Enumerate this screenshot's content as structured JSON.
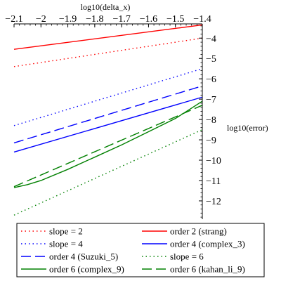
{
  "chart_data": {
    "type": "line",
    "xlabel": "log10(delta_x)",
    "ylabel": "log10(error)",
    "xlim": [
      -2.1,
      -1.4
    ],
    "ylim": [
      -12.9,
      -3.3
    ],
    "x_ticks": [
      -2.1,
      -2,
      -1.9,
      -1.8,
      -1.7,
      -1.6,
      -1.5,
      -1.4
    ],
    "x_tick_labels": [
      "−2.1",
      "−2",
      "−1.9",
      "−1.8",
      "−1.7",
      "−1.6",
      "−1.5",
      "−1.4"
    ],
    "y_ticks": [
      -4,
      -5,
      -6,
      -7,
      -8,
      -9,
      -10,
      -11,
      -12
    ],
    "y_tick_labels": [
      "−4",
      "−5",
      "−6",
      "−7",
      "−8",
      "−9",
      "−10",
      "−11",
      "−12"
    ],
    "x_axis_position": "top",
    "y_axis_position": "right",
    "grid": false,
    "legend_position": "bottom",
    "series": [
      {
        "name": "slope = 2",
        "color": "#ff0000",
        "dash": "dotted",
        "x": [
          -2.1,
          -1.4
        ],
        "y": [
          -5.4,
          -4.0
        ]
      },
      {
        "name": "order 2 (strang)",
        "color": "#ff0000",
        "dash": "solid",
        "x": [
          -2.1,
          -1.4
        ],
        "y": [
          -4.55,
          -3.35
        ]
      },
      {
        "name": "slope = 4",
        "color": "#0000ff",
        "dash": "dotted",
        "x": [
          -2.1,
          -1.4
        ],
        "y": [
          -8.3,
          -5.5
        ]
      },
      {
        "name": "order 4 (complex_3)",
        "color": "#0000ff",
        "dash": "solid",
        "x": [
          -2.1,
          -1.4
        ],
        "y": [
          -9.6,
          -6.9
        ]
      },
      {
        "name": "order 4 (Suzuki_5)",
        "color": "#0000ff",
        "dash": "dashed",
        "x": [
          -2.1,
          -1.4
        ],
        "y": [
          -9.15,
          -6.35
        ]
      },
      {
        "name": "slope = 6",
        "color": "#008000",
        "dash": "dotted",
        "x": [
          -2.1,
          -1.4
        ],
        "y": [
          -12.7,
          -8.5
        ]
      },
      {
        "name": "order 6 (complex_9)",
        "color": "#008000",
        "dash": "solid",
        "x": [
          -2.1,
          -2.05,
          -2.0,
          -1.9,
          -1.8,
          -1.7,
          -1.6,
          -1.5,
          -1.4
        ],
        "y": [
          -11.35,
          -11.2,
          -11.0,
          -10.45,
          -9.85,
          -9.25,
          -8.6,
          -7.95,
          -7.1
        ]
      },
      {
        "name": "order 6 (kahan_li_9)",
        "color": "#008000",
        "dash": "dashed",
        "x": [
          -2.1,
          -1.4
        ],
        "y": [
          -11.3,
          -7.3
        ]
      }
    ],
    "legend_order": [
      "slope = 2",
      "order 2 (strang)",
      "slope = 4",
      "order 4 (complex_3)",
      "order 4 (Suzuki_5)",
      "slope = 6",
      "order 6 (complex_9)",
      "order 6 (kahan_li_9)"
    ]
  }
}
